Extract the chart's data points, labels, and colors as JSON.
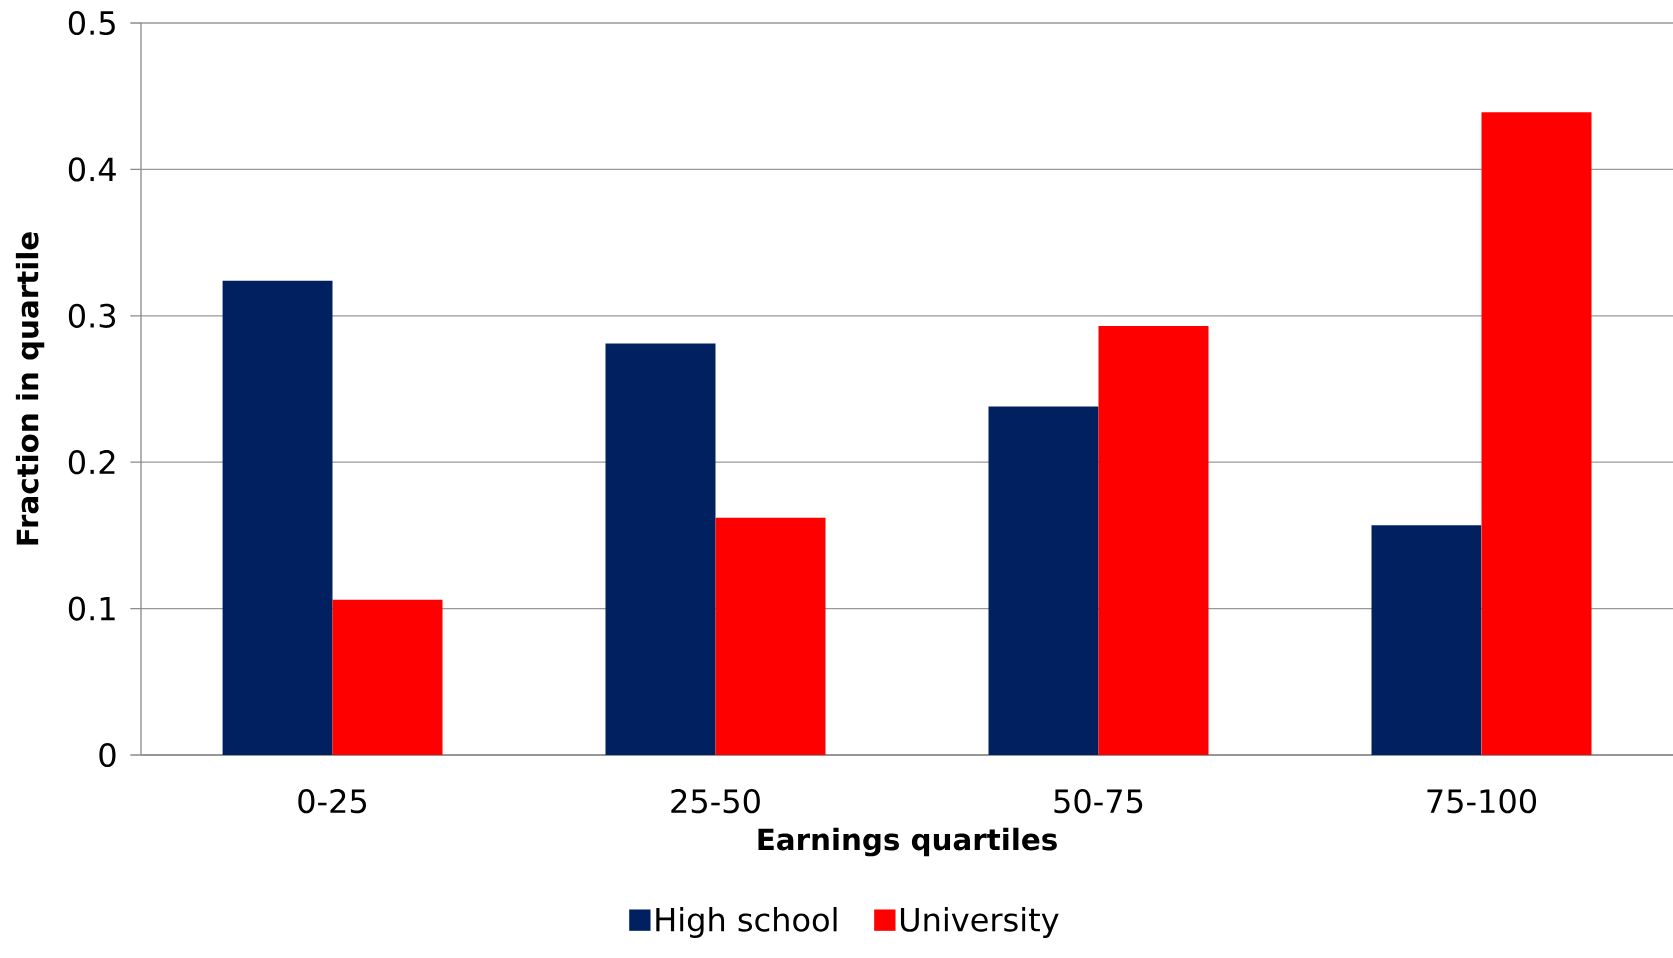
{
  "chart_data": {
    "type": "bar",
    "xlabel": "Earnings quartiles",
    "ylabel": "Fraction in quartile",
    "categories": [
      "0-25",
      "25-50",
      "50-75",
      "75-100"
    ],
    "series": [
      {
        "name": "High school",
        "color": "#002060",
        "values": [
          0.324,
          0.281,
          0.238,
          0.157
        ]
      },
      {
        "name": "University",
        "color": "#ff0000",
        "values": [
          0.106,
          0.162,
          0.293,
          0.439
        ]
      }
    ],
    "ylim": [
      0,
      0.5
    ],
    "yticks": [
      0,
      0.1,
      0.2,
      0.3,
      0.4,
      0.5
    ],
    "grid": "y",
    "legend": "bottom"
  }
}
